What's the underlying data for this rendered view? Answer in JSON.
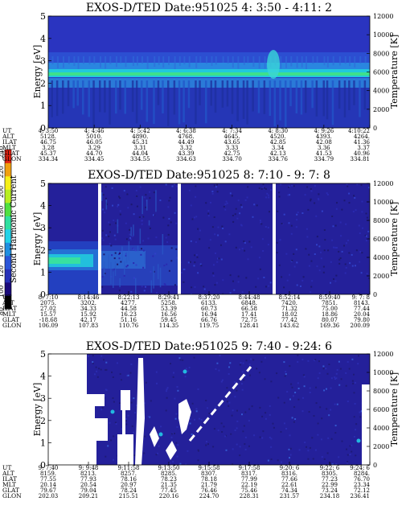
{
  "colorbar": {
    "label": "Second Harmonic Current",
    "ticks": [
      "80",
      "100",
      "120",
      "140",
      "160",
      "180",
      "200",
      "220",
      "240"
    ],
    "colors": [
      "#000000",
      "#1a0a7a",
      "#2630b8",
      "#2a55d8",
      "#1f8fe0",
      "#22d2e8",
      "#30e0a0",
      "#50e040",
      "#b8ee20",
      "#f6f018",
      "#f0a010",
      "#e02010"
    ]
  },
  "chart_data": [
    {
      "type": "heatmap",
      "title": "EXOS-D/TED   Date:951025  4: 3:50 - 4:11: 2",
      "ylabel": "Energy [eV]",
      "y2label": "Temperature [K]",
      "ylim": [
        0,
        5
      ],
      "y2lim": [
        0,
        12000
      ],
      "yticks": [
        "0",
        "1",
        "2",
        "3",
        "4",
        "5"
      ],
      "y2ticks": [
        "0",
        "2000",
        "4000",
        "6000",
        "8000",
        "10000",
        "12000"
      ],
      "orbit_rows": [
        {
          "label": "UT",
          "values": [
            "4: 3:50",
            "4: 4:46",
            "4: 5:42",
            "4: 6:38",
            "4: 7:34",
            "4: 8:30",
            "4: 9:26",
            "4:10:22"
          ]
        },
        {
          "label": "ALT",
          "values": [
            "5128.",
            "5010.",
            "4890.",
            "4768.",
            "4645.",
            "4520.",
            "4393.",
            "4264."
          ]
        },
        {
          "label": "ILAT",
          "values": [
            "46.75",
            "46.05",
            "45.31",
            "44.49",
            "43.65",
            "42.85",
            "42.08",
            "41.36"
          ]
        },
        {
          "label": "MLT",
          "values": [
            "3.28",
            "3.29",
            "3.31",
            "3.32",
            "3.33",
            "3.34",
            "3.36",
            "3.37"
          ]
        },
        {
          "label": "GLAT",
          "values": [
            "45.37",
            "44.70",
            "44.04",
            "43.39",
            "42.75",
            "42.13",
            "41.53",
            "40.96"
          ]
        },
        {
          "label": "GLON",
          "values": [
            "334.34",
            "334.45",
            "334.55",
            "334.63",
            "334.70",
            "334.76",
            "334.79",
            "334.81"
          ]
        }
      ]
    },
    {
      "type": "heatmap",
      "title": "EXOS-D/TED   Date:951025  8: 7:10 - 9: 7: 8",
      "ylabel": "Energy [eV]",
      "y2label": "Temperature [K]",
      "ylim": [
        0,
        5
      ],
      "y2lim": [
        0,
        12000
      ],
      "yticks": [
        "0",
        "1",
        "2",
        "3",
        "4",
        "5"
      ],
      "y2ticks": [
        "0",
        "2000",
        "4000",
        "6000",
        "8000",
        "10000",
        "12000"
      ],
      "orbit_rows": [
        {
          "label": "UT",
          "values": [
            "8: 7:10",
            "8:14:46",
            "8:22:13",
            "8:29:41",
            "8:37:20",
            "8:44:48",
            "8:52:14",
            "8:59:40",
            "9: 7: 8"
          ]
        },
        {
          "label": "ALT",
          "values": [
            "2075.",
            "3202.",
            "4277.",
            "5258.",
            "6133.",
            "6848.",
            "7420.",
            "7851.",
            "8143."
          ]
        },
        {
          "label": "ILAT",
          "values": [
            "27.02",
            "34.33",
            "44.58",
            "53.39",
            "60.73",
            "66.58",
            "71.32",
            "75.00",
            "77.44"
          ]
        },
        {
          "label": "MLT",
          "values": [
            "15.57",
            "15.92",
            "16.23",
            "16.56",
            "16.94",
            "17.41",
            "18.02",
            "18.86",
            "20.04"
          ]
        },
        {
          "label": "GLAT",
          "values": [
            "-18.68",
            "42.17",
            "51.16",
            "59.45",
            "66.76",
            "72.75",
            "77.42",
            "80.07",
            "79.80"
          ]
        },
        {
          "label": "GLON",
          "values": [
            "106.09",
            "107.83",
            "110.76",
            "114.35",
            "119.75",
            "128.41",
            "143.62",
            "169.36",
            "200.09"
          ]
        }
      ]
    },
    {
      "type": "heatmap",
      "title": "EXOS-D/TED   Date:951025  9: 7:40 - 9:24: 6",
      "ylabel": "Energy [eV]",
      "y2label": "Temperature [K]",
      "ylim": [
        0,
        5
      ],
      "y2lim": [
        0,
        12000
      ],
      "yticks": [
        "0",
        "1",
        "2",
        "3",
        "4",
        "5"
      ],
      "y2ticks": [
        "0",
        "2000",
        "4000",
        "6000",
        "8000",
        "10000",
        "12000"
      ],
      "orbit_rows": [
        {
          "label": "UT",
          "values": [
            "9: 7:40",
            "9: 9:48",
            "9:11:58",
            "9:13:50",
            "9:15:58",
            "9:17:58",
            "9:20: 6",
            "9:22: 6",
            "9:24: 6"
          ]
        },
        {
          "label": "ALT",
          "values": [
            "8159.",
            "8213.",
            "8257.",
            "8285.",
            "8307.",
            "8317.",
            "8316.",
            "8305.",
            "8284."
          ]
        },
        {
          "label": "ILAT",
          "values": [
            "77.55",
            "77.93",
            "78.16",
            "78.23",
            "78.18",
            "77.99",
            "77.66",
            "77.23",
            "76.70"
          ]
        },
        {
          "label": "MLT",
          "values": [
            "20.14",
            "20.54",
            "20.97",
            "21.35",
            "21.79",
            "22.19",
            "22.61",
            "22.99",
            "23.34"
          ]
        },
        {
          "label": "GLAT",
          "values": [
            "79.67",
            "79.04",
            "78.24",
            "77.45",
            "76.46",
            "75.46",
            "74.34",
            "73.24",
            "72.12"
          ]
        },
        {
          "label": "GLON",
          "values": [
            "202.03",
            "209.21",
            "215.51",
            "220.16",
            "224.70",
            "228.31",
            "231.57",
            "234.18",
            "236.41"
          ]
        }
      ]
    }
  ]
}
